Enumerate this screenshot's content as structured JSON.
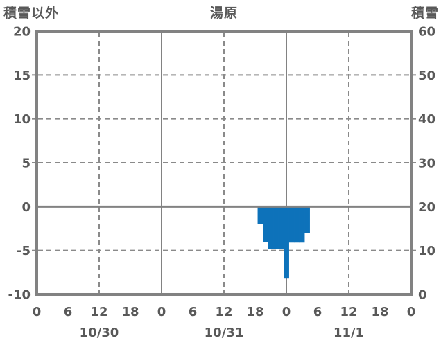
{
  "chart_data": {
    "type": "bar",
    "station_title": "湯原",
    "left_axis_title": "積雪以外",
    "right_axis_title": "積雪",
    "left_ticks": [
      20,
      15,
      10,
      5,
      0,
      -5,
      -10
    ],
    "right_ticks": [
      60,
      50,
      40,
      30,
      20,
      10,
      0
    ],
    "left_range": [
      -10,
      20
    ],
    "right_range": [
      0,
      60
    ],
    "x_range_hours": [
      0,
      72
    ],
    "x_hour_ticks": [
      "0",
      "6",
      "12",
      "18",
      "0",
      "6",
      "12",
      "18",
      "0",
      "6",
      "12",
      "18",
      "0"
    ],
    "x_hour_tick_step": 6,
    "day_labels": [
      "10/30",
      "10/31",
      "11/1"
    ],
    "gridlines": {
      "h_dashed_left_values": [
        15,
        10,
        5,
        -5
      ],
      "h_solid_left_values": [
        0
      ],
      "v_solid_hours": [
        24,
        48
      ],
      "v_dashed_hours": [
        12,
        36,
        60
      ],
      "grid_on": true
    },
    "bars": [
      {
        "hours_from_start": 43,
        "time": "10/31 19:00",
        "value": -2.0
      },
      {
        "hours_from_start": 44,
        "time": "10/31 20:00",
        "value": -4.0
      },
      {
        "hours_from_start": 45,
        "time": "10/31 21:00",
        "value": -4.8
      },
      {
        "hours_from_start": 46,
        "time": "10/31 22:00",
        "value": -4.8
      },
      {
        "hours_from_start": 47,
        "time": "10/31 23:00",
        "value": -4.8
      },
      {
        "hours_from_start": 48,
        "time": "11/1 00:00",
        "value": -8.2
      },
      {
        "hours_from_start": 49,
        "time": "11/1 01:00",
        "value": -4.1
      },
      {
        "hours_from_start": 50,
        "time": "11/1 02:00",
        "value": -4.1
      },
      {
        "hours_from_start": 51,
        "time": "11/1 03:00",
        "value": -4.1
      },
      {
        "hours_from_start": 52,
        "time": "11/1 04:00",
        "value": -3.0
      }
    ],
    "colors": {
      "bar": "#0d72ba",
      "border": "#828282",
      "grid": "#8a8a8a",
      "zero_line": "#828282",
      "text": "#595959",
      "background": "#ffffff"
    }
  }
}
